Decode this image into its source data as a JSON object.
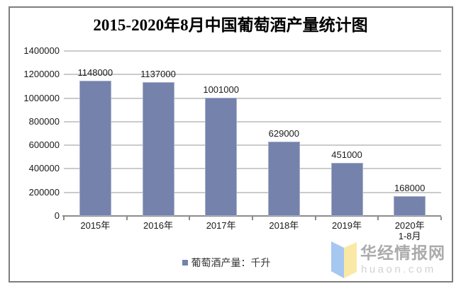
{
  "title": "2015-2020年8月中国葡萄酒产量统计图",
  "chart_data": {
    "type": "bar",
    "title": "2015-2020年8月中国葡萄酒产量统计图",
    "categories": [
      "2015年",
      "2016年",
      "2017年",
      "2018年",
      "2019年",
      "2020年\n1-8月"
    ],
    "values": [
      1148000,
      1137000,
      1001000,
      629000,
      451000,
      168000
    ],
    "legend": [
      "葡萄酒产量：千升"
    ],
    "legend_position": "bottom",
    "ylim": [
      0,
      1400000
    ],
    "yticks": [
      0,
      200000,
      400000,
      600000,
      800000,
      1000000,
      1200000,
      1400000
    ],
    "grid": true,
    "xlabel": "",
    "ylabel": "",
    "bar_color": "#7482ac"
  },
  "legend": {
    "label": "葡萄酒产量：千升"
  },
  "watermark": {
    "name": "华经情报网",
    "domain": "huaon.com"
  },
  "colors": {
    "bar": "#7482ac",
    "bar_border": "#a9b0cb",
    "gridline": "#cbcbcb",
    "axis": "#8c8c8c",
    "frame_border": "#7e7e7e",
    "logo_blue": "#a6c7f0",
    "logo_yellow": "#fae9a6",
    "watermark_text": "#ababab",
    "watermark_domain": "#d2d2d2"
  }
}
